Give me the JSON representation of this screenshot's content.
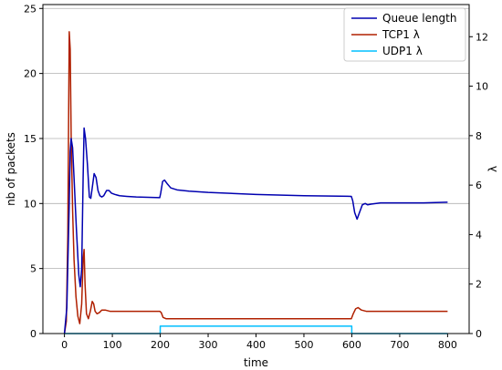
{
  "chart_data": {
    "type": "line",
    "xlabel": "time",
    "ylabel_left": "nb of packets",
    "ylabel_right": "λ",
    "xlim": [
      -45,
      845
    ],
    "ylim_left": [
      0,
      25.3
    ],
    "ylim_right": [
      0,
      13.3
    ],
    "x_ticks": [
      0,
      100,
      200,
      300,
      400,
      500,
      600,
      700,
      800
    ],
    "y_ticks_left": [
      0,
      5,
      10,
      15,
      20,
      25
    ],
    "y_ticks_right": [
      0,
      2,
      4,
      6,
      8,
      10,
      12
    ],
    "grid": "horizontal",
    "legend_position": "top-right",
    "series": [
      {
        "name": "Queue length",
        "axis": "left",
        "color": "#0000b0",
        "points": [
          [
            0,
            0
          ],
          [
            5,
            2
          ],
          [
            10,
            10
          ],
          [
            12,
            14
          ],
          [
            14,
            15
          ],
          [
            17,
            14.3
          ],
          [
            20,
            12
          ],
          [
            25,
            8
          ],
          [
            30,
            4.5
          ],
          [
            33,
            3.6
          ],
          [
            36,
            5
          ],
          [
            39,
            12
          ],
          [
            41,
            15.8
          ],
          [
            44,
            15
          ],
          [
            48,
            13
          ],
          [
            52,
            10.5
          ],
          [
            55,
            10.4
          ],
          [
            58,
            11.2
          ],
          [
            62,
            12.3
          ],
          [
            66,
            12
          ],
          [
            70,
            11
          ],
          [
            74,
            10.6
          ],
          [
            78,
            10.5
          ],
          [
            82,
            10.6
          ],
          [
            88,
            11
          ],
          [
            93,
            11
          ],
          [
            98,
            10.8
          ],
          [
            105,
            10.7
          ],
          [
            115,
            10.6
          ],
          [
            130,
            10.55
          ],
          [
            150,
            10.5
          ],
          [
            199,
            10.45
          ],
          [
            201,
            10.8
          ],
          [
            205,
            11.7
          ],
          [
            209,
            11.8
          ],
          [
            215,
            11.5
          ],
          [
            222,
            11.2
          ],
          [
            235,
            11.05
          ],
          [
            260,
            10.95
          ],
          [
            300,
            10.85
          ],
          [
            400,
            10.7
          ],
          [
            500,
            10.6
          ],
          [
            599,
            10.55
          ],
          [
            602,
            10.2
          ],
          [
            606,
            9.3
          ],
          [
            611,
            8.8
          ],
          [
            616,
            9.3
          ],
          [
            622,
            9.9
          ],
          [
            628,
            10
          ],
          [
            633,
            9.9
          ],
          [
            640,
            9.95
          ],
          [
            660,
            10.05
          ],
          [
            700,
            10.05
          ],
          [
            750,
            10.05
          ],
          [
            800,
            10.1
          ]
        ]
      },
      {
        "name": "TCP1 λ",
        "axis": "right",
        "color": "#b02000",
        "points": [
          [
            0,
            0
          ],
          [
            4,
            0.5
          ],
          [
            7,
            4
          ],
          [
            10,
            12.2
          ],
          [
            12,
            11.5
          ],
          [
            14,
            8
          ],
          [
            17,
            5
          ],
          [
            20,
            3
          ],
          [
            24,
            1.5
          ],
          [
            28,
            0.7
          ],
          [
            32,
            0.4
          ],
          [
            36,
            1.2
          ],
          [
            39,
            3
          ],
          [
            41,
            3.4
          ],
          [
            43,
            2
          ],
          [
            46,
            0.8
          ],
          [
            50,
            0.6
          ],
          [
            54,
            0.9
          ],
          [
            58,
            1.3
          ],
          [
            61,
            1.2
          ],
          [
            64,
            0.9
          ],
          [
            68,
            0.8
          ],
          [
            73,
            0.85
          ],
          [
            78,
            0.95
          ],
          [
            85,
            0.95
          ],
          [
            95,
            0.9
          ],
          [
            110,
            0.9
          ],
          [
            150,
            0.9
          ],
          [
            199,
            0.9
          ],
          [
            202,
            0.85
          ],
          [
            206,
            0.65
          ],
          [
            212,
            0.6
          ],
          [
            230,
            0.6
          ],
          [
            300,
            0.6
          ],
          [
            400,
            0.6
          ],
          [
            500,
            0.6
          ],
          [
            599,
            0.6
          ],
          [
            603,
            0.8
          ],
          [
            608,
            1
          ],
          [
            613,
            1.05
          ],
          [
            620,
            0.95
          ],
          [
            630,
            0.9
          ],
          [
            660,
            0.9
          ],
          [
            700,
            0.9
          ],
          [
            800,
            0.9
          ]
        ]
      },
      {
        "name": "UDP1 λ",
        "axis": "right",
        "color": "#00bfff",
        "points": [
          [
            0,
            0
          ],
          [
            199.9,
            0
          ],
          [
            200,
            0.3
          ],
          [
            599.9,
            0.3
          ],
          [
            600,
            0
          ],
          [
            800,
            0
          ]
        ]
      }
    ]
  }
}
